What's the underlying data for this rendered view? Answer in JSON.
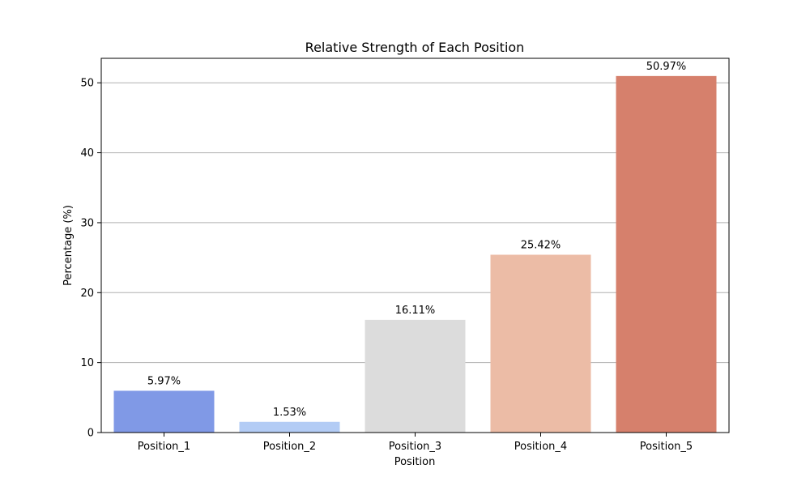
{
  "chart_data": {
    "type": "bar",
    "title": "Relative Strength of Each Position",
    "xlabel": "Position",
    "ylabel": "Percentage (%)",
    "categories": [
      "Position_1",
      "Position_2",
      "Position_3",
      "Position_4",
      "Position_5"
    ],
    "values": [
      5.97,
      1.53,
      16.11,
      25.42,
      50.97
    ],
    "data_labels": [
      "5.97%",
      "1.53%",
      "16.11%",
      "25.42%",
      "50.97%"
    ],
    "colors": [
      "#8099e6",
      "#b3ccf5",
      "#dcdcdc",
      "#ecbca6",
      "#d6806c"
    ],
    "ylim": [
      0,
      53.5
    ],
    "yticks": [
      0,
      10,
      20,
      30,
      40,
      50
    ],
    "grid": "horizontal",
    "legend": "none"
  }
}
